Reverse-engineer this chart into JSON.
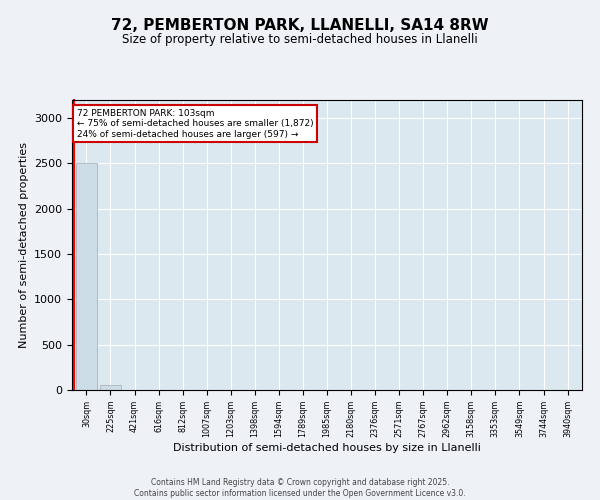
{
  "title_line1": "72, PEMBERTON PARK, LLANELLI, SA14 8RW",
  "title_line2": "Size of property relative to semi-detached houses in Llanelli",
  "xlabel": "Distribution of semi-detached houses by size in Llanelli",
  "ylabel": "Number of semi-detached properties",
  "bin_labels": [
    "30sqm",
    "225sqm",
    "421sqm",
    "616sqm",
    "812sqm",
    "1007sqm",
    "1203sqm",
    "1398sqm",
    "1594sqm",
    "1789sqm",
    "1985sqm",
    "2180sqm",
    "2376sqm",
    "2571sqm",
    "2767sqm",
    "2962sqm",
    "3158sqm",
    "3353sqm",
    "3549sqm",
    "3744sqm",
    "3940sqm"
  ],
  "bar_values": [
    2500,
    50,
    0,
    0,
    0,
    0,
    0,
    0,
    0,
    0,
    0,
    0,
    0,
    0,
    0,
    0,
    0,
    0,
    0,
    0,
    0
  ],
  "bar_color": "#ccdde8",
  "bar_edge_color": "#aaaaaa",
  "annotation_title": "72 PEMBERTON PARK: 103sqm",
  "annotation_line2": "← 75% of semi-detached houses are smaller (1,872)",
  "annotation_line3": "24% of semi-detached houses are larger (597) →",
  "annotation_box_color": "#cc0000",
  "ylim": [
    0,
    3200
  ],
  "yticks": [
    0,
    500,
    1000,
    1500,
    2000,
    2500,
    3000
  ],
  "footer_line1": "Contains HM Land Registry data © Crown copyright and database right 2025.",
  "footer_line2": "Contains public sector information licensed under the Open Government Licence v3.0.",
  "bg_color": "#eef2f6",
  "plot_bg_color": "#dce8f0"
}
